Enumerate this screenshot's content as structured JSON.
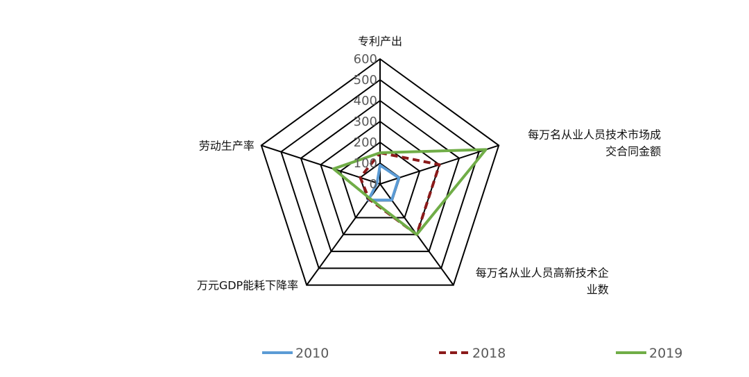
{
  "chart_data": {
    "type": "radar",
    "axes": [
      [
        "专利产出"
      ],
      [
        "每万名从业人员技术市场成",
        "交合同金额"
      ],
      [
        "每万名从业人员高新技术企",
        "业数"
      ],
      [
        "万元GDP能耗下降率"
      ],
      [
        "劳动生产率"
      ]
    ],
    "range": [
      0,
      600
    ],
    "ticks": [
      0,
      100,
      200,
      300,
      400,
      500,
      600
    ],
    "tick_labels": [
      "0",
      "100",
      "200",
      "300",
      "400",
      "500",
      "600"
    ],
    "grid": true,
    "legend_position": "bottom",
    "series": [
      {
        "name": "2010",
        "values": [
          90,
          95,
          95,
          95,
          15
        ],
        "color": "#5b9bd5",
        "dash": "solid"
      },
      {
        "name": "2018",
        "values": [
          150,
          300,
          300,
          90,
          100
        ],
        "color": "#8b1a1a",
        "dash": "dashed"
      },
      {
        "name": "2019",
        "values": [
          150,
          535,
          300,
          85,
          235
        ],
        "color": "#70ad47",
        "dash": "solid"
      }
    ]
  }
}
